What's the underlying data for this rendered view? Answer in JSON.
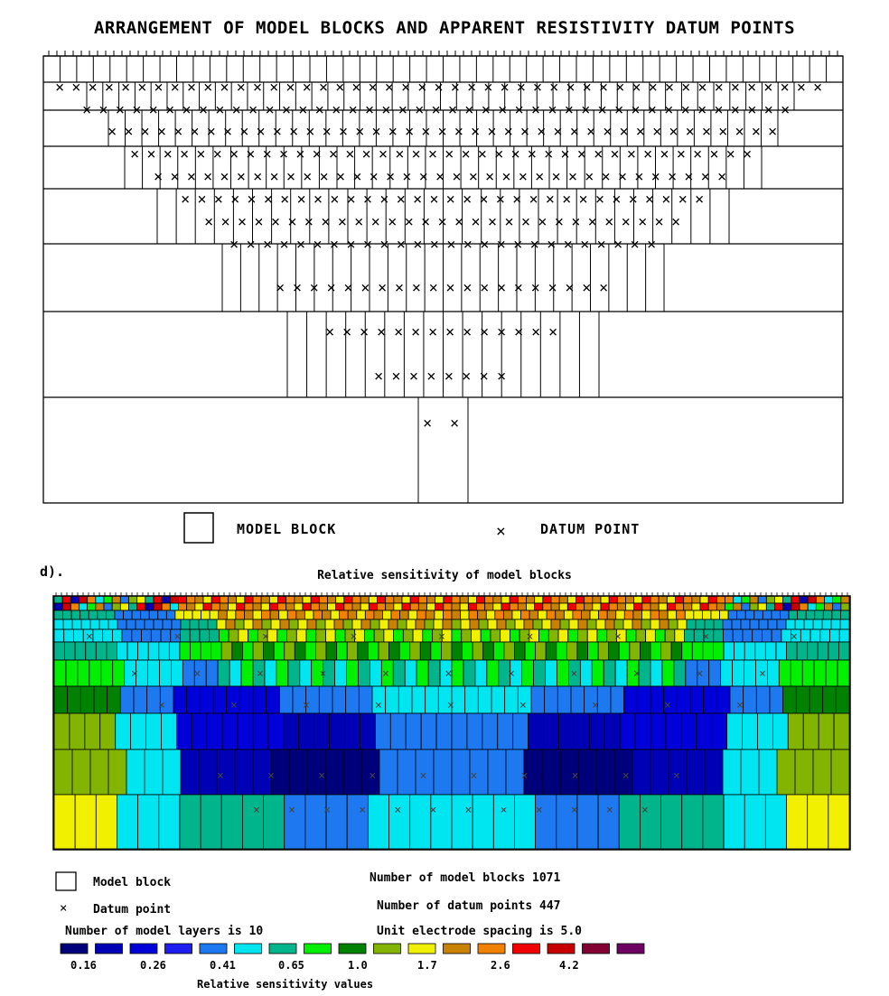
{
  "top_panel": {
    "title": "ARRANGEMENT OF MODEL BLOCKS AND APPARENT RESISTIVITY DATUM POINTS",
    "legend_block_label": "MODEL BLOCK",
    "legend_datum_label": "DATUM POINT",
    "datum_symbol": "×"
  },
  "bottom_panel": {
    "panel_label": "d).",
    "title": "Relative sensitivity of model blocks",
    "legend_block_label": "Model block",
    "legend_datum_label": "Datum point",
    "datum_symbol": "×",
    "info": {
      "num_blocks": "Number of model blocks 1071",
      "num_datum": "Number of datum points 447",
      "num_layers": "Number of model layers is 10",
      "electrode_spacing": "Unit electrode spacing is 5.0"
    },
    "colorbar": {
      "title": "Relative sensitivity values",
      "colors": [
        "#00007a",
        "#0000b4",
        "#0000d8",
        "#1e1ef0",
        "#1e78f0",
        "#00e6f0",
        "#00b48c",
        "#00f000",
        "#008200",
        "#82b400",
        "#f0f000",
        "#c88200",
        "#f08200",
        "#f00000",
        "#c80000",
        "#820032",
        "#6e0064"
      ],
      "tick_labels": [
        "0.16",
        "0.26",
        "0.41",
        "0.65",
        "1.0",
        "1.7",
        "2.6",
        "4.2"
      ]
    },
    "layer_colors": [
      [
        "#00b48c",
        "#1e78f0",
        "#f0f000",
        "#f08200",
        "#c88200",
        "#f0f000",
        "#f08200",
        "#f00000"
      ],
      [
        "#00e6f0",
        "#1e78f0",
        "#00b48c",
        "#f0f000",
        "#c88200",
        "#82b400",
        "#f0f000"
      ],
      [
        "#00e6f0",
        "#1e78f0",
        "#00b48c",
        "#82b400",
        "#f0f000",
        "#82b400"
      ],
      [
        "#00b48c",
        "#00e6f0",
        "#00f000",
        "#82b400",
        "#00e6f0"
      ],
      [
        "#00f000",
        "#00e6f0",
        "#1e78f0",
        "#00e6f0",
        "#1e78f0"
      ],
      [
        "#008200",
        "#1e78f0",
        "#0000d8",
        "#1e78f0",
        "#00e6f0"
      ],
      [
        "#82b400",
        "#00e6f0",
        "#0000d8",
        "#0000b4",
        "#1e78f0"
      ],
      [
        "#82b400",
        "#00e6f0",
        "#0000b4",
        "#00007a",
        "#1e78f0"
      ],
      [
        "#f0f000",
        "#00e6f0",
        "#00b48c",
        "#1e78f0",
        "#00e6f0"
      ]
    ]
  }
}
